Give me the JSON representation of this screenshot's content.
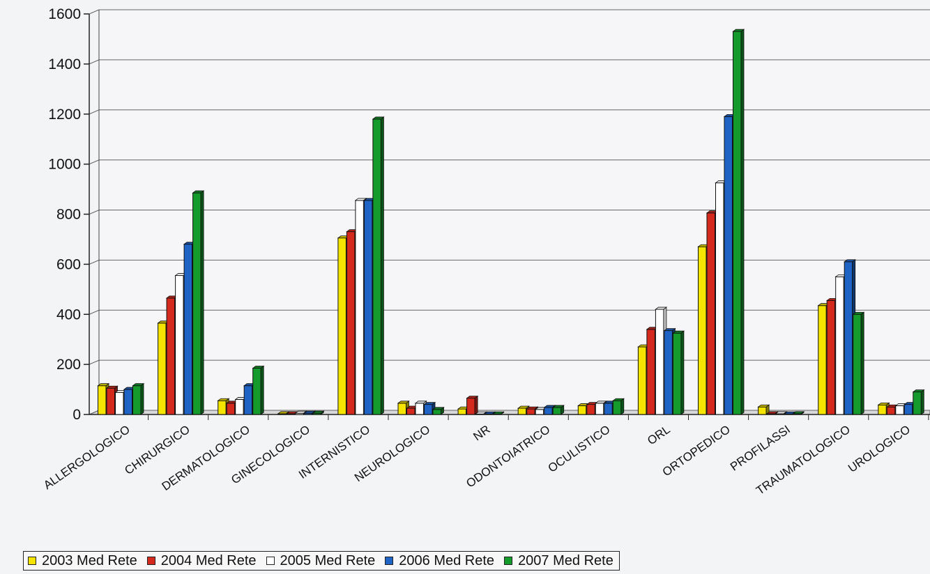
{
  "chart_data": {
    "type": "bar",
    "title": "",
    "xlabel": "",
    "ylabel": "",
    "ylim": [
      0,
      1600
    ],
    "y_ticks": [
      0,
      200,
      400,
      600,
      800,
      1000,
      1200,
      1400,
      1600
    ],
    "grid": true,
    "legend_position": "bottom",
    "categories": [
      "ALLERGOLOGICO",
      "CHIRURGICO",
      "DERMATOLOGICO",
      "GINECOLOGICO",
      "INTERNISTICO",
      "NEUROLOGICO",
      "NR",
      "ODONTOIATRICO",
      "OCULISTICO",
      "ORL",
      "ORTOPEDICO",
      "PROFILASSI",
      "TRAUMATOLOGICO",
      "UROLOGICO"
    ],
    "series": [
      {
        "name": "2003 Med Rete",
        "color": "#f5e400",
        "values": [
          115,
          365,
          55,
          3,
          705,
          45,
          22,
          25,
          35,
          270,
          670,
          30,
          435,
          38
        ]
      },
      {
        "name": "2004 Med Rete",
        "color": "#d42a1e",
        "values": [
          105,
          465,
          45,
          3,
          730,
          25,
          65,
          22,
          40,
          340,
          805,
          3,
          455,
          30
        ]
      },
      {
        "name": "2005 Med Rete",
        "color": "#ffffff",
        "values": [
          88,
          555,
          60,
          5,
          855,
          45,
          2,
          20,
          45,
          420,
          925,
          3,
          550,
          35
        ]
      },
      {
        "name": "2006 Med Rete",
        "color": "#1f63c4",
        "values": [
          100,
          680,
          115,
          5,
          855,
          40,
          2,
          28,
          45,
          335,
          1190,
          2,
          610,
          40
        ]
      },
      {
        "name": "2007 Med Rete",
        "color": "#159a2c",
        "values": [
          115,
          885,
          185,
          5,
          1180,
          20,
          2,
          28,
          55,
          325,
          1530,
          3,
          400,
          90
        ]
      }
    ]
  }
}
